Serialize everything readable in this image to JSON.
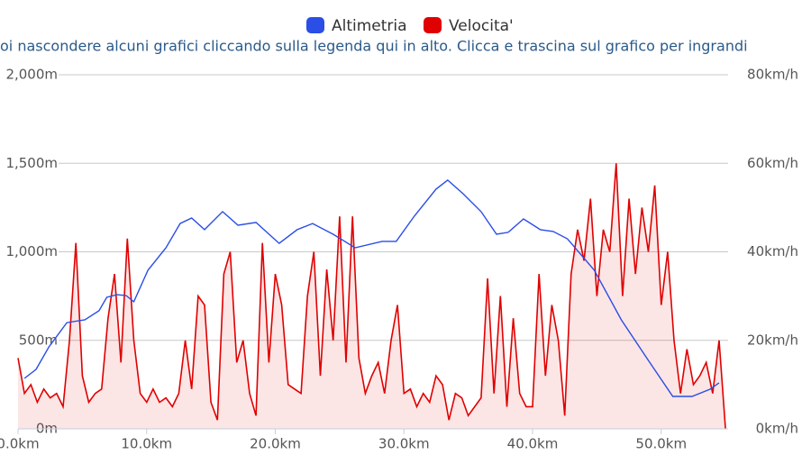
{
  "chart_data": {
    "type": "line",
    "legend": "top",
    "subtitle": "oi nascondere alcuni grafici cliccando sulla legenda qui in alto. Clicca e trascina sul grafico per ingrandi",
    "xlim": [
      0,
      55.2
    ],
    "xticks": [
      {
        "value": 0,
        "label": "0.0km"
      },
      {
        "value": 10,
        "label": "10.0km"
      },
      {
        "value": 20,
        "label": "20.0km"
      },
      {
        "value": 30,
        "label": "30.0km"
      },
      {
        "value": 40,
        "label": "40.0km"
      },
      {
        "value": 50,
        "label": "50.0km"
      }
    ],
    "ylim": [
      0,
      2000
    ],
    "yticks": [
      {
        "value": 0,
        "label": "0m"
      },
      {
        "value": 500,
        "label": "500m"
      },
      {
        "value": 1000,
        "label": "1,000m"
      },
      {
        "value": 1500,
        "label": "1,500m"
      },
      {
        "value": 2000,
        "label": "2,000m"
      }
    ],
    "y2lim": [
      0,
      80
    ],
    "y2ticks": [
      {
        "value": 0,
        "label": "0km/h"
      },
      {
        "value": 20,
        "label": "20km/h"
      },
      {
        "value": 40,
        "label": "40km/h"
      },
      {
        "value": 60,
        "label": "60km/h"
      },
      {
        "value": 80,
        "label": "80km/h"
      }
    ],
    "grid": true,
    "series": [
      {
        "name": "Altimetria",
        "color": "#2a4ee6",
        "axis": "y",
        "x": [
          0.5,
          1.4,
          2.4,
          3.8,
          5.2,
          6.3,
          6.9,
          7.7,
          8.4,
          9.0,
          10.1,
          11.5,
          12.6,
          13.5,
          14.5,
          15.9,
          17.1,
          18.5,
          20.3,
          21.7,
          22.9,
          24.5,
          26.2,
          28.3,
          29.4,
          30.8,
          32.5,
          33.4,
          34.6,
          36.0,
          37.2,
          38.1,
          39.3,
          40.6,
          41.6,
          42.7,
          44.8,
          46.9,
          49.0,
          50.9,
          52.4,
          53.8,
          54.5
        ],
        "values": [
          285,
          336,
          463,
          600,
          616,
          667,
          743,
          758,
          753,
          718,
          896,
          1023,
          1160,
          1191,
          1125,
          1227,
          1150,
          1166,
          1048,
          1125,
          1160,
          1099,
          1023,
          1059,
          1059,
          1201,
          1354,
          1405,
          1328,
          1227,
          1099,
          1110,
          1186,
          1125,
          1115,
          1074,
          896,
          616,
          387,
          183,
          183,
          224,
          260
        ]
      },
      {
        "name": "Velocita'",
        "color": "#e00000",
        "axis": "y2",
        "x": [
          0,
          0.5,
          1,
          1.5,
          2,
          2.5,
          3,
          3.5,
          4,
          4.5,
          5,
          5.5,
          6,
          6.5,
          7,
          7.5,
          8,
          8.5,
          9,
          9.5,
          10,
          10.5,
          11,
          11.5,
          12,
          12.5,
          13,
          13.5,
          14,
          14.5,
          15,
          15.5,
          16,
          16.5,
          17,
          17.5,
          18,
          18.5,
          19,
          19.5,
          20,
          20.5,
          21,
          21.5,
          22,
          22.5,
          23,
          23.5,
          24,
          24.5,
          25,
          25.5,
          26,
          26.5,
          27,
          27.5,
          28,
          28.5,
          29,
          29.5,
          30,
          30.5,
          31,
          31.5,
          32,
          32.5,
          33,
          33.5,
          34,
          34.5,
          35,
          35.5,
          36,
          36.5,
          37,
          37.5,
          38,
          38.5,
          39,
          39.5,
          40,
          40.5,
          41,
          41.5,
          42,
          42.5,
          43,
          43.5,
          44,
          44.5,
          45,
          45.5,
          46,
          46.5,
          47,
          47.5,
          48,
          48.5,
          49,
          49.5,
          50,
          50.5,
          51,
          51.5,
          52,
          52.5,
          53,
          53.5,
          54,
          54.5,
          55
        ],
        "values": [
          16,
          8,
          10,
          6,
          9,
          7,
          8,
          5,
          20,
          42,
          12,
          6,
          8,
          9,
          25,
          35,
          15,
          43,
          20,
          8,
          6,
          9,
          6,
          7,
          5,
          8,
          20,
          9,
          30,
          28,
          6,
          2,
          35,
          40,
          15,
          20,
          8,
          3,
          42,
          15,
          35,
          28,
          10,
          9,
          8,
          30,
          40,
          12,
          36,
          20,
          48,
          15,
          48,
          16,
          8,
          12,
          15,
          8,
          20,
          28,
          8,
          9,
          5,
          8,
          6,
          12,
          10,
          2,
          8,
          7,
          3,
          5,
          7,
          34,
          8,
          30,
          5,
          25,
          8,
          5,
          5,
          35,
          12,
          28,
          20,
          3,
          35,
          45,
          38,
          52,
          30,
          45,
          40,
          60,
          30,
          52,
          35,
          50,
          40,
          55,
          28,
          40,
          20,
          8,
          18,
          10,
          12,
          15,
          8,
          20,
          0
        ]
      }
    ]
  }
}
